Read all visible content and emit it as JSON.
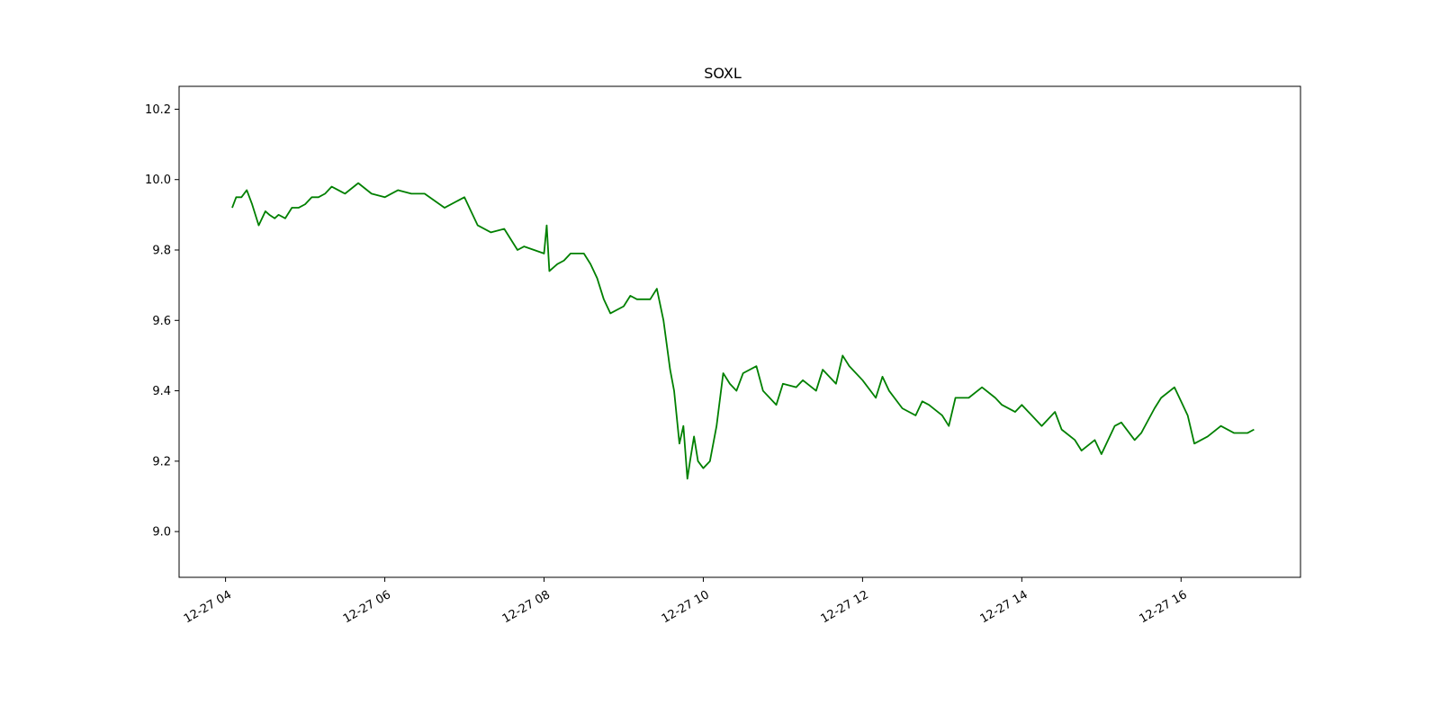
{
  "chart_data": {
    "type": "line",
    "title": "SOXL",
    "xlabel": "",
    "ylabel": "",
    "xlim": [
      "12-27 03:25",
      "12-27 17:30"
    ],
    "ylim": [
      8.87,
      10.265
    ],
    "x_ticks": [
      {
        "label": "12-27 04",
        "value": "12-27 04:00"
      },
      {
        "label": "12-27 06",
        "value": "12-27 06:00"
      },
      {
        "label": "12-27 08",
        "value": "12-27 08:00"
      },
      {
        "label": "12-27 10",
        "value": "12-27 10:00"
      },
      {
        "label": "12-27 12",
        "value": "12-27 12:00"
      },
      {
        "label": "12-27 14",
        "value": "12-27 14:00"
      },
      {
        "label": "12-27 16",
        "value": "12-27 16:00"
      }
    ],
    "y_ticks": [
      {
        "label": "9.0",
        "value": 9.0
      },
      {
        "label": "9.2",
        "value": 9.2
      },
      {
        "label": "9.4",
        "value": 9.4
      },
      {
        "label": "9.6",
        "value": 9.6
      },
      {
        "label": "9.8",
        "value": 9.8
      },
      {
        "label": "10.0",
        "value": 10.0
      },
      {
        "label": "10.2",
        "value": 10.2
      }
    ],
    "grid": false,
    "series": [
      {
        "color": "#008000",
        "x": [
          "12-27 04:05",
          "12-27 04:08",
          "12-27 04:12",
          "12-27 04:16",
          "12-27 04:20",
          "12-27 04:25",
          "12-27 04:30",
          "12-27 04:33",
          "12-27 04:37",
          "12-27 04:40",
          "12-27 04:45",
          "12-27 04:50",
          "12-27 04:55",
          "12-27 05:00",
          "12-27 05:05",
          "12-27 05:10",
          "12-27 05:15",
          "12-27 05:20",
          "12-27 05:30",
          "12-27 05:40",
          "12-27 05:50",
          "12-27 06:00",
          "12-27 06:10",
          "12-27 06:20",
          "12-27 06:30",
          "12-27 06:45",
          "12-27 07:00",
          "12-27 07:05",
          "12-27 07:10",
          "12-27 07:20",
          "12-27 07:30",
          "12-27 07:40",
          "12-27 07:45",
          "12-27 08:00",
          "12-27 08:02",
          "12-27 08:04",
          "12-27 08:10",
          "12-27 08:15",
          "12-27 08:20",
          "12-27 08:30",
          "12-27 08:35",
          "12-27 08:40",
          "12-27 08:45",
          "12-27 08:50",
          "12-27 09:00",
          "12-27 09:05",
          "12-27 09:10",
          "12-27 09:20",
          "12-27 09:25",
          "12-27 09:30",
          "12-27 09:35",
          "12-27 09:38",
          "12-27 09:42",
          "12-27 09:45",
          "12-27 09:48",
          "12-27 09:50",
          "12-27 09:53",
          "12-27 09:56",
          "12-27 10:00",
          "12-27 10:05",
          "12-27 10:10",
          "12-27 10:15",
          "12-27 10:20",
          "12-27 10:25",
          "12-27 10:30",
          "12-27 10:40",
          "12-27 10:45",
          "12-27 10:55",
          "12-27 11:00",
          "12-27 11:10",
          "12-27 11:15",
          "12-27 11:25",
          "12-27 11:30",
          "12-27 11:40",
          "12-27 11:45",
          "12-27 11:50",
          "12-27 12:00",
          "12-27 12:10",
          "12-27 12:15",
          "12-27 12:20",
          "12-27 12:30",
          "12-27 12:40",
          "12-27 12:45",
          "12-27 12:50",
          "12-27 13:00",
          "12-27 13:05",
          "12-27 13:10",
          "12-27 13:20",
          "12-27 13:30",
          "12-27 13:40",
          "12-27 13:45",
          "12-27 13:55",
          "12-27 14:00",
          "12-27 14:10",
          "12-27 14:15",
          "12-27 14:25",
          "12-27 14:30",
          "12-27 14:40",
          "12-27 14:45",
          "12-27 14:55",
          "12-27 15:00",
          "12-27 15:10",
          "12-27 15:15",
          "12-27 15:25",
          "12-27 15:30",
          "12-27 15:40",
          "12-27 15:45",
          "12-27 15:55",
          "12-27 16:00",
          "12-27 16:05",
          "12-27 16:10",
          "12-27 16:20",
          "12-27 16:30",
          "12-27 16:40",
          "12-27 16:50",
          "12-27 16:55"
        ],
        "y": [
          9.92,
          9.95,
          9.95,
          9.97,
          9.93,
          9.87,
          9.91,
          9.9,
          9.89,
          9.9,
          9.89,
          9.92,
          9.92,
          9.93,
          9.95,
          9.95,
          9.96,
          9.98,
          9.96,
          9.99,
          9.96,
          9.95,
          9.97,
          9.96,
          9.96,
          9.92,
          9.95,
          9.91,
          9.87,
          9.85,
          9.86,
          9.8,
          9.81,
          9.79,
          9.87,
          9.74,
          9.76,
          9.77,
          9.79,
          9.79,
          9.76,
          9.72,
          9.66,
          9.62,
          9.64,
          9.67,
          9.66,
          9.66,
          9.69,
          9.6,
          9.46,
          9.4,
          9.25,
          9.3,
          9.15,
          9.2,
          9.27,
          9.2,
          9.18,
          9.2,
          9.3,
          9.45,
          9.42,
          9.4,
          9.45,
          9.47,
          9.4,
          9.36,
          9.42,
          9.41,
          9.43,
          9.4,
          9.46,
          9.42,
          9.5,
          9.47,
          9.43,
          9.38,
          9.44,
          9.4,
          9.35,
          9.33,
          9.37,
          9.36,
          9.33,
          9.3,
          9.38,
          9.38,
          9.41,
          9.38,
          9.36,
          9.34,
          9.36,
          9.32,
          9.3,
          9.34,
          9.29,
          9.26,
          9.23,
          9.26,
          9.22,
          9.3,
          9.31,
          9.26,
          9.28,
          9.35,
          9.38,
          9.41,
          9.37,
          9.33,
          9.25,
          9.27,
          9.3,
          9.28,
          9.28,
          9.29
        ]
      }
    ]
  }
}
